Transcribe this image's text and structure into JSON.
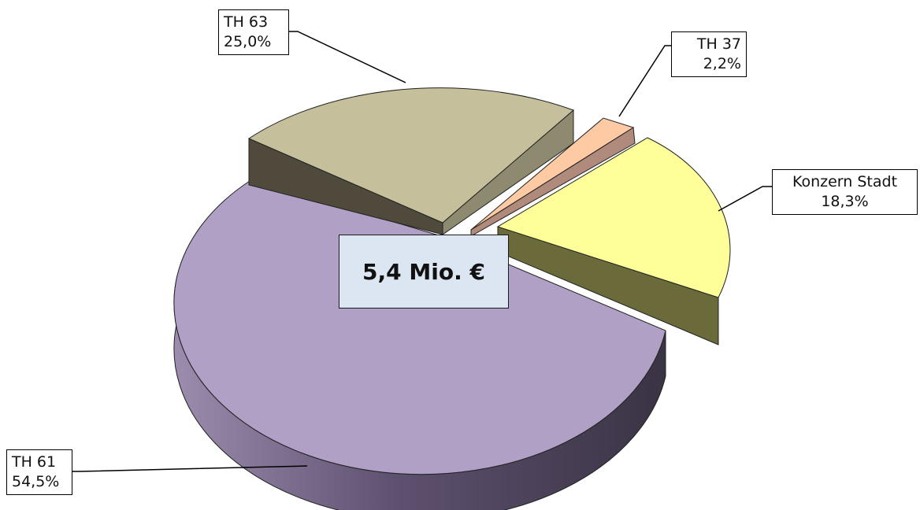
{
  "chart_data": {
    "type": "pie",
    "style": "3d-exploded",
    "total_label": "5,4 Mio. €",
    "slices": [
      {
        "label": "TH 61",
        "value": 54.5,
        "value_label": "54,5%",
        "color": "#b1a0c6"
      },
      {
        "label": "TH 63",
        "value": 25.0,
        "value_label": "25,0%",
        "color": "#c5bf9b"
      },
      {
        "label": "TH 37",
        "value": 2.2,
        "value_label": "2,2%",
        "color": "#fdcaa4"
      },
      {
        "label": "Konzern Stadt",
        "value": 18.3,
        "value_label": "18,3%",
        "color": "#ffff99"
      }
    ]
  }
}
